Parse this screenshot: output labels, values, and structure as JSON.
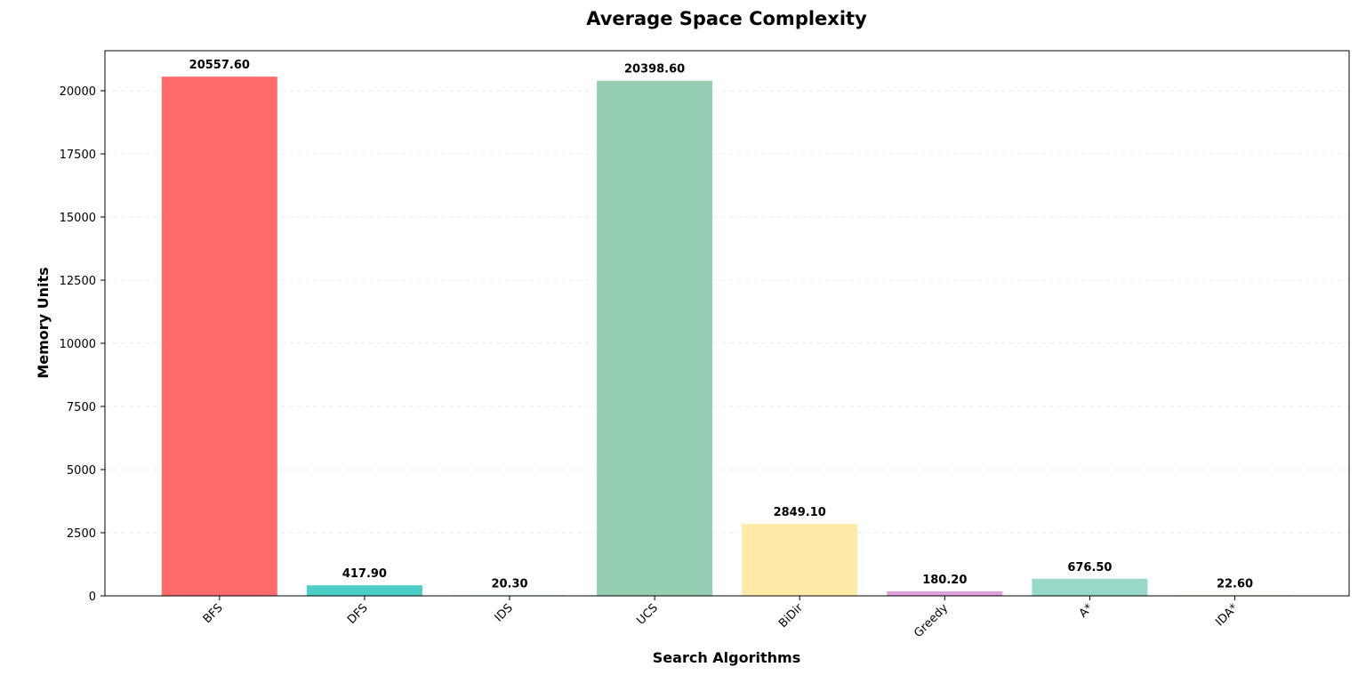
{
  "chart_data": {
    "type": "bar",
    "title": "Average Space Complexity",
    "xlabel": "Search Algorithms",
    "ylabel": "Memory Units",
    "categories": [
      "BFS",
      "DFS",
      "IDS",
      "UCS",
      "BiDir",
      "Greedy",
      "A*",
      "IDA*"
    ],
    "values": [
      20557.6,
      417.9,
      20.3,
      20398.6,
      2849.1,
      180.2,
      676.5,
      22.6
    ],
    "value_labels": [
      "20557.60",
      "417.90",
      "20.30",
      "20398.60",
      "2849.10",
      "180.20",
      "676.50",
      "22.60"
    ],
    "colors": [
      "#ff6b6b",
      "#4ecdc4",
      "#45b7d1",
      "#96ceb4",
      "#ffeaa7",
      "#dda0dd",
      "#98d8c8",
      "#f7dc6f"
    ],
    "ylim": [
      0,
      21585.48
    ],
    "yticks": [
      0,
      2500,
      5000,
      7500,
      10000,
      12500,
      15000,
      17500,
      20000
    ],
    "grid": "y",
    "legend": "none"
  }
}
